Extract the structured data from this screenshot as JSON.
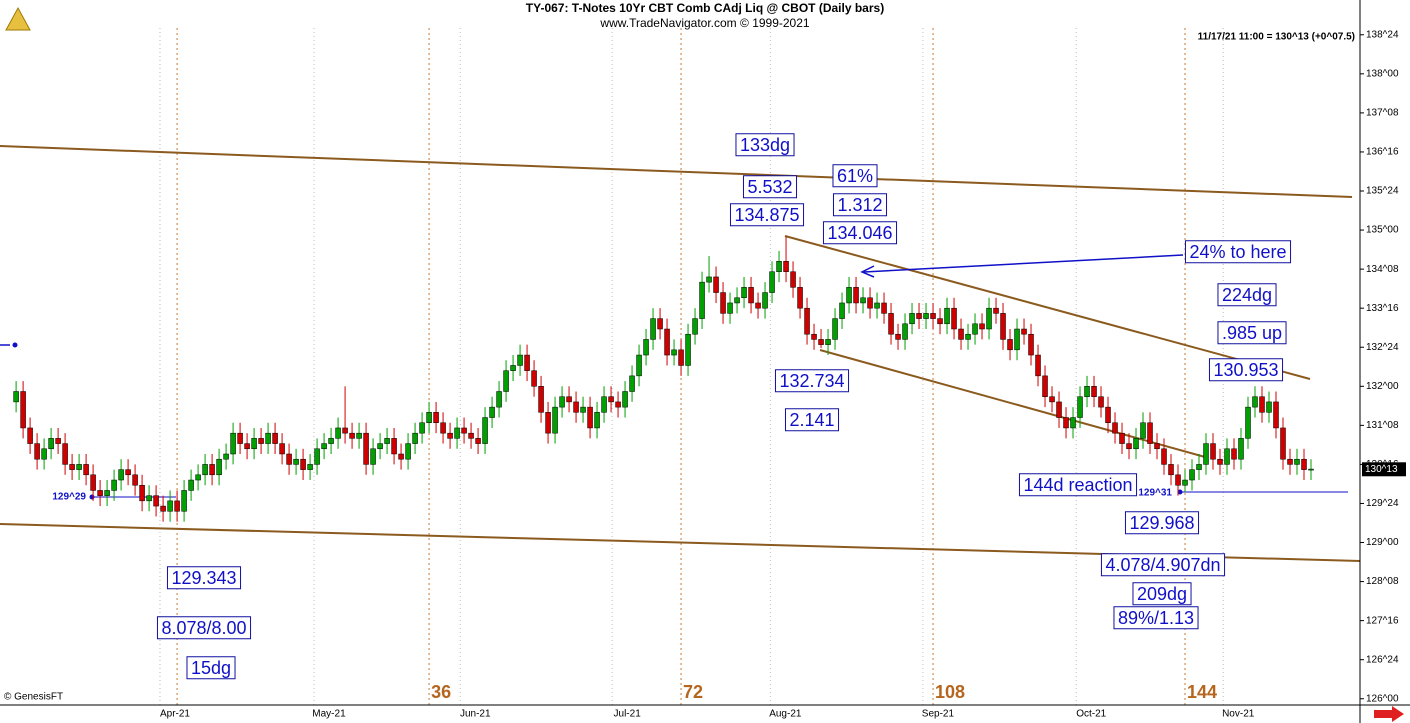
{
  "chart_data": {
    "type": "candlestick",
    "title": "TY-067:  T-Notes 10Yr CBT Comb CAdj Liq @ CBOT  (Daily bars)",
    "subtitle": "www.TradeNavigator.com © 1999-2021",
    "quote": "11/17/21 11:00 = 130^13 (+0^07.5)",
    "credit": "© GenesisFT",
    "last_price": {
      "value": 130.40625,
      "label": "130^13"
    },
    "up_color": "#00a000",
    "down_color": "#d00000",
    "ylim": [
      125.88,
      138.88
    ],
    "xlim": [
      -2.3,
      192
    ],
    "yticks": [
      {
        "value": 138.75,
        "label": "138^24"
      },
      {
        "value": 138,
        "label": "138^00"
      },
      {
        "value": 137.25,
        "label": "137^08"
      },
      {
        "value": 136.5,
        "label": "136^16"
      },
      {
        "value": 135.75,
        "label": "135^24"
      },
      {
        "value": 135,
        "label": "135^00"
      },
      {
        "value": 134.25,
        "label": "134^08"
      },
      {
        "value": 133.5,
        "label": "133^16"
      },
      {
        "value": 132.75,
        "label": "132^24"
      },
      {
        "value": 132,
        "label": "132^00"
      },
      {
        "value": 131.25,
        "label": "131^08"
      },
      {
        "value": 130.5,
        "label": "130^16"
      },
      {
        "value": 129.75,
        "label": "129^24"
      },
      {
        "value": 129,
        "label": "129^00"
      },
      {
        "value": 128.25,
        "label": "128^08"
      },
      {
        "value": 127.5,
        "label": "127^16"
      },
      {
        "value": 126.75,
        "label": "126^24"
      },
      {
        "value": 126,
        "label": "126^00"
      }
    ],
    "xticks": [
      {
        "value": 22.7,
        "label": "Apr-21"
      },
      {
        "value": 44.7,
        "label": "May-21"
      },
      {
        "value": 65.6,
        "label": "Jun-21"
      },
      {
        "value": 87.3,
        "label": "Jul-21"
      },
      {
        "value": 109.9,
        "label": "Aug-21"
      },
      {
        "value": 131.7,
        "label": "Sep-21"
      },
      {
        "value": 153.6,
        "label": "Oct-21"
      },
      {
        "value": 174.6,
        "label": "Nov-21"
      }
    ],
    "cycle_start": 23,
    "cycle_counts": [
      {
        "value": 59,
        "label": "36"
      },
      {
        "value": 95,
        "label": "72"
      },
      {
        "value": 131,
        "label": "108"
      },
      {
        "value": 167,
        "label": "144"
      }
    ],
    "annotations": [
      "133dg",
      "5.532",
      "134.875",
      "61%",
      "1.312",
      "134.046",
      "24% to here",
      "224dg",
      ".985 up",
      "130.953",
      "132.734",
      "2.141",
      "144d reaction",
      "129.968",
      "4.078/4.907dn",
      "209dg",
      "89%/1.13",
      "129.343",
      "8.078/8.00",
      "15dg"
    ],
    "price_marks": [
      "129^29",
      "129^31"
    ],
    "open": [
      131.7,
      131.9,
      131.2,
      130.9,
      130.6,
      130.8,
      131.0,
      130.9,
      130.5,
      130.4,
      130.5,
      130.3,
      130.0,
      129.9,
      130.0,
      130.2,
      130.4,
      130.3,
      130.1,
      129.8,
      129.9,
      129.7,
      129.6,
      129.8,
      129.6,
      130.0,
      130.2,
      130.3,
      130.5,
      130.3,
      130.6,
      130.7,
      131.1,
      130.9,
      130.8,
      131.0,
      130.9,
      131.1,
      130.9,
      130.7,
      130.5,
      130.6,
      130.4,
      130.5,
      130.8,
      130.9,
      131.0,
      131.2,
      131.1,
      131.0,
      131.1,
      130.5,
      130.8,
      130.9,
      131.0,
      130.7,
      130.6,
      130.9,
      131.1,
      131.3,
      131.5,
      131.3,
      131.1,
      131.0,
      131.2,
      131.1,
      131.0,
      130.9,
      131.4,
      131.6,
      131.9,
      132.3,
      132.4,
      132.6,
      132.3,
      132.0,
      131.5,
      131.1,
      131.6,
      131.8,
      131.7,
      131.5,
      131.6,
      131.2,
      131.5,
      131.8,
      131.7,
      131.6,
      131.9,
      132.2,
      132.6,
      132.9,
      133.3,
      133.1,
      132.6,
      132.7,
      132.4,
      133.0,
      133.3,
      134.0,
      134.1,
      133.8,
      133.4,
      133.6,
      133.7,
      133.9,
      133.6,
      133.5,
      133.8,
      134.2,
      134.4,
      134.2,
      133.9,
      133.5,
      133.0,
      132.9,
      132.8,
      132.9,
      133.3,
      133.6,
      133.9,
      133.6,
      133.7,
      133.5,
      133.6,
      133.4,
      133.0,
      132.9,
      133.2,
      133.4,
      133.3,
      133.4,
      133.3,
      133.2,
      133.5,
      133.1,
      132.9,
      133.0,
      133.2,
      133.1,
      133.5,
      133.4,
      132.9,
      132.7,
      133.1,
      133.0,
      132.6,
      132.2,
      131.8,
      131.7,
      131.4,
      131.2,
      131.4,
      131.8,
      132.0,
      131.8,
      131.6,
      131.3,
      131.1,
      130.9,
      130.8,
      131.0,
      131.3,
      130.9,
      130.8,
      130.5,
      130.3,
      130.1,
      130.2,
      130.4,
      130.5,
      130.9,
      130.6,
      130.5,
      130.8,
      130.6,
      131.0,
      131.6,
      131.8,
      131.5,
      131.7,
      131.2,
      130.6,
      130.5,
      130.6,
      130.4
    ],
    "high": [
      132.1,
      132.1,
      131.4,
      131.1,
      131.0,
      131.2,
      131.2,
      131.1,
      130.7,
      130.7,
      130.7,
      130.5,
      130.2,
      130.2,
      130.4,
      130.6,
      130.6,
      130.5,
      130.3,
      130.1,
      130.1,
      129.9,
      130.0,
      130.0,
      130.2,
      130.4,
      130.5,
      130.7,
      130.7,
      130.8,
      130.9,
      131.3,
      131.3,
      131.1,
      131.2,
      131.2,
      131.3,
      131.3,
      131.1,
      130.9,
      130.8,
      130.8,
      130.7,
      131.0,
      131.1,
      131.2,
      131.4,
      132.0,
      131.3,
      131.3,
      131.3,
      131.0,
      131.1,
      131.2,
      131.2,
      130.9,
      131.1,
      131.3,
      131.5,
      131.7,
      131.7,
      131.5,
      131.3,
      131.4,
      131.4,
      131.3,
      131.2,
      131.6,
      131.8,
      132.1,
      132.5,
      132.6,
      132.8,
      132.8,
      132.5,
      132.2,
      131.7,
      131.8,
      132.0,
      132.0,
      131.9,
      131.8,
      131.8,
      131.7,
      132.0,
      132.0,
      131.9,
      132.1,
      132.4,
      132.8,
      133.1,
      133.5,
      133.5,
      133.3,
      132.9,
      132.9,
      133.2,
      133.5,
      134.2,
      134.5,
      134.3,
      134.0,
      133.8,
      133.9,
      134.1,
      134.1,
      133.8,
      134.0,
      134.4,
      134.6,
      134.875,
      134.4,
      134.1,
      133.7,
      133.2,
      133.1,
      133.1,
      133.5,
      133.8,
      134.1,
      134.1,
      133.9,
      133.9,
      133.8,
      133.8,
      133.6,
      133.2,
      133.4,
      133.6,
      133.6,
      133.6,
      133.6,
      133.5,
      133.7,
      133.7,
      133.3,
      133.2,
      133.4,
      133.4,
      133.7,
      133.7,
      133.6,
      133.1,
      133.3,
      133.3,
      133.2,
      132.8,
      132.4,
      132.0,
      131.9,
      131.6,
      131.6,
      132.0,
      132.2,
      132.2,
      132.0,
      131.8,
      131.5,
      131.3,
      131.1,
      131.2,
      131.5,
      131.5,
      131.1,
      131.0,
      130.7,
      130.5,
      130.4,
      130.6,
      130.7,
      131.1,
      131.1,
      130.8,
      131.0,
      131.0,
      131.2,
      131.8,
      132.0,
      132.0,
      131.9,
      131.9,
      131.4,
      130.8,
      130.8,
      130.8,
      130.6
    ],
    "low": [
      131.5,
      131.0,
      130.7,
      130.4,
      130.4,
      130.6,
      130.7,
      130.3,
      130.2,
      130.2,
      130.1,
      129.8,
      129.7,
      129.7,
      129.8,
      130.0,
      130.1,
      129.9,
      129.6,
      129.6,
      129.5,
      129.4,
      129.4,
      129.4,
      129.4,
      129.8,
      130.0,
      130.1,
      130.1,
      130.1,
      130.4,
      130.5,
      130.7,
      130.6,
      130.6,
      130.7,
      130.7,
      130.7,
      130.5,
      130.3,
      130.3,
      130.2,
      130.2,
      130.3,
      130.6,
      130.7,
      130.8,
      130.9,
      130.8,
      130.8,
      130.3,
      130.3,
      130.6,
      130.7,
      130.5,
      130.4,
      130.4,
      130.7,
      130.9,
      131.1,
      131.1,
      130.9,
      130.8,
      130.8,
      130.9,
      130.8,
      130.7,
      130.7,
      131.2,
      131.4,
      131.7,
      132.1,
      132.2,
      132.1,
      131.8,
      131.3,
      130.9,
      130.9,
      131.4,
      131.5,
      131.3,
      131.3,
      131.0,
      131.0,
      131.3,
      131.5,
      131.4,
      131.4,
      131.7,
      132.0,
      132.4,
      132.7,
      132.9,
      132.4,
      132.4,
      132.2,
      132.2,
      132.8,
      133.1,
      133.8,
      133.6,
      133.2,
      133.2,
      133.4,
      133.5,
      133.4,
      133.3,
      133.3,
      133.6,
      134.0,
      134.0,
      133.7,
      133.3,
      132.8,
      132.7,
      132.734,
      132.6,
      132.7,
      133.1,
      133.4,
      133.4,
      133.4,
      133.3,
      133.3,
      133.2,
      132.8,
      132.7,
      132.7,
      133.0,
      133.1,
      133.1,
      133.1,
      133.0,
      133.0,
      132.9,
      132.7,
      132.7,
      132.8,
      132.9,
      132.9,
      133.2,
      132.7,
      132.5,
      132.5,
      132.8,
      132.4,
      132.0,
      131.6,
      131.5,
      131.2,
      131.0,
      131.0,
      131.2,
      131.6,
      131.6,
      131.4,
      131.1,
      130.9,
      130.7,
      130.6,
      130.6,
      130.8,
      130.7,
      130.6,
      130.3,
      130.1,
      129.9,
      129.968,
      130.0,
      130.2,
      130.3,
      130.4,
      130.3,
      130.3,
      130.4,
      130.4,
      130.8,
      131.4,
      131.3,
      131.3,
      131.0,
      130.4,
      130.3,
      130.3,
      130.2,
      130.2
    ],
    "close": [
      131.9,
      131.2,
      130.9,
      130.6,
      130.8,
      131.0,
      130.9,
      130.5,
      130.4,
      130.5,
      130.3,
      130.0,
      129.9,
      130.0,
      130.2,
      130.4,
      130.3,
      130.1,
      129.8,
      129.9,
      129.7,
      129.6,
      129.8,
      129.6,
      130.0,
      130.2,
      130.3,
      130.5,
      130.3,
      130.6,
      130.7,
      131.1,
      130.9,
      130.8,
      131.0,
      130.9,
      131.1,
      130.9,
      130.7,
      130.5,
      130.6,
      130.4,
      130.5,
      130.8,
      130.9,
      131.0,
      131.2,
      131.1,
      131.0,
      131.1,
      130.5,
      130.8,
      130.9,
      131.0,
      130.7,
      130.6,
      130.9,
      131.1,
      131.3,
      131.5,
      131.3,
      131.1,
      131.0,
      131.2,
      131.1,
      131.0,
      130.9,
      131.4,
      131.6,
      131.9,
      132.3,
      132.4,
      132.6,
      132.3,
      132.0,
      131.5,
      131.1,
      131.6,
      131.8,
      131.7,
      131.5,
      131.6,
      131.2,
      131.5,
      131.8,
      131.7,
      131.6,
      131.9,
      132.2,
      132.6,
      132.9,
      133.3,
      133.1,
      132.6,
      132.7,
      132.4,
      133.0,
      133.3,
      134.0,
      134.1,
      133.8,
      133.4,
      133.6,
      133.7,
      133.9,
      133.6,
      133.5,
      133.8,
      134.2,
      134.4,
      134.2,
      133.9,
      133.5,
      133.0,
      132.9,
      132.8,
      132.9,
      133.3,
      133.6,
      133.9,
      133.6,
      133.7,
      133.5,
      133.6,
      133.4,
      133.0,
      132.9,
      133.2,
      133.4,
      133.3,
      133.4,
      133.3,
      133.2,
      133.5,
      133.1,
      132.9,
      133.0,
      133.2,
      133.1,
      133.5,
      133.4,
      132.9,
      132.7,
      133.1,
      133.0,
      132.6,
      132.2,
      131.8,
      131.7,
      131.4,
      131.2,
      131.4,
      131.8,
      132.0,
      131.8,
      131.6,
      131.3,
      131.1,
      130.9,
      130.8,
      131.0,
      131.3,
      130.9,
      130.8,
      130.5,
      130.3,
      130.1,
      130.2,
      130.4,
      130.5,
      130.9,
      130.6,
      130.5,
      130.8,
      130.6,
      131.0,
      131.6,
      131.8,
      131.5,
      131.7,
      131.2,
      130.6,
      130.5,
      130.6,
      130.4,
      130.41
    ]
  }
}
